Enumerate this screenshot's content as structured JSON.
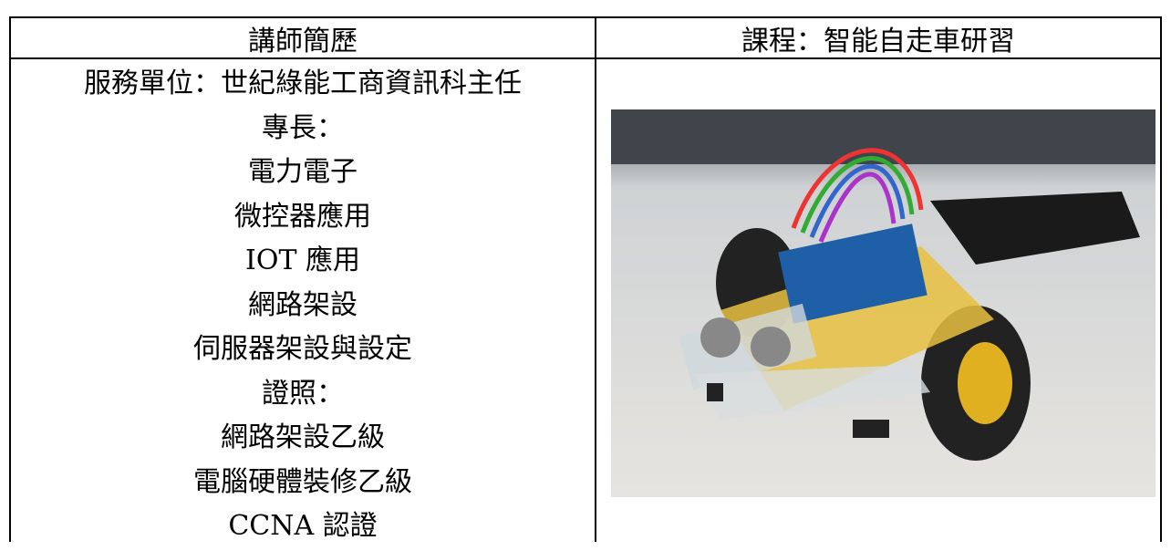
{
  "table": {
    "headers": [
      "講師簡歷",
      "課程：智能自走車研習"
    ],
    "bio_lines": [
      "服務單位：世紀綠能工商資訊科主任",
      "專長：",
      "電力電子",
      "微控器應用",
      "IOT 應用",
      "網路架設",
      "伺服器架設與設定",
      "證照：",
      "網路架設乙級",
      "電腦硬體裝修乙級",
      "CCNA 認證"
    ]
  }
}
